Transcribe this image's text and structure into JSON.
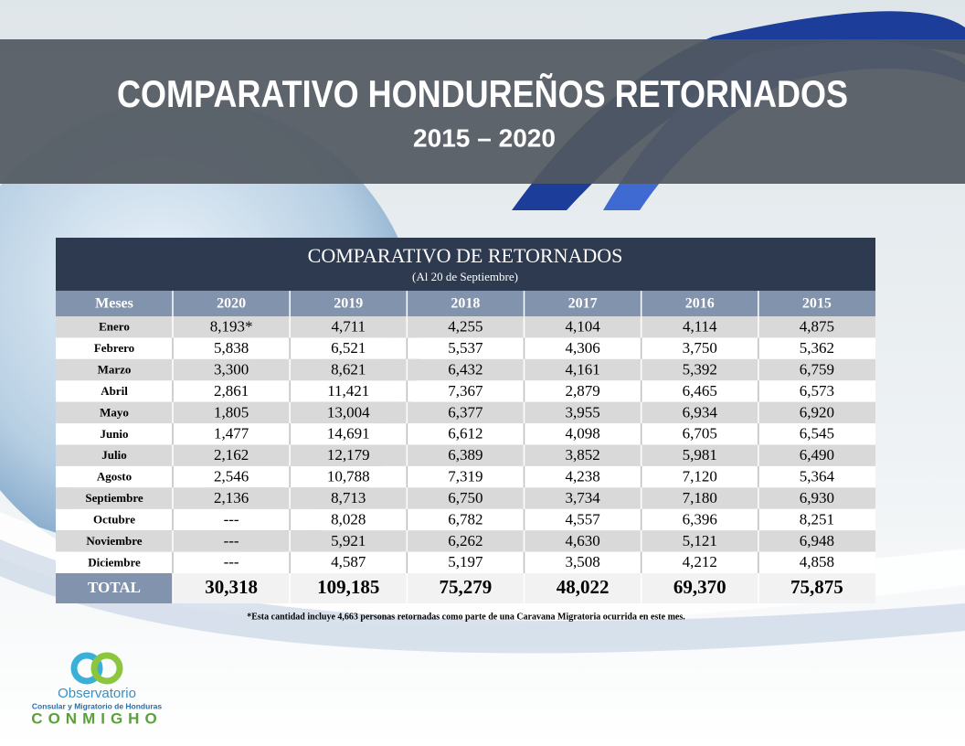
{
  "header": {
    "title": "COMPARATIVO HONDUREÑOS RETORNADOS",
    "subtitle": "2015 – 2020"
  },
  "table": {
    "title": "COMPARATIVO DE RETORNADOS",
    "subtitle": "(Al 20 de Septiembre)",
    "columns": [
      "Meses",
      "2020",
      "2019",
      "2018",
      "2017",
      "2016",
      "2015"
    ],
    "rows": [
      [
        "Enero",
        "8,193*",
        "4,711",
        "4,255",
        "4,104",
        "4,114",
        "4,875"
      ],
      [
        "Febrero",
        "5,838",
        "6,521",
        "5,537",
        "4,306",
        "3,750",
        "5,362"
      ],
      [
        "Marzo",
        "3,300",
        "8,621",
        "6,432",
        "4,161",
        "5,392",
        "6,759"
      ],
      [
        "Abril",
        "2,861",
        "11,421",
        "7,367",
        "2,879",
        "6,465",
        "6,573"
      ],
      [
        "Mayo",
        "1,805",
        "13,004",
        "6,377",
        "3,955",
        "6,934",
        "6,920"
      ],
      [
        "Junio",
        "1,477",
        "14,691",
        "6,612",
        "4,098",
        "6,705",
        "6,545"
      ],
      [
        "Julio",
        "2,162",
        "12,179",
        "6,389",
        "3,852",
        "5,981",
        "6,490"
      ],
      [
        "Agosto",
        "2,546",
        "10,788",
        "7,319",
        "4,238",
        "7,120",
        "5,364"
      ],
      [
        "Septiembre",
        "2,136",
        "8,713",
        "6,750",
        "3,734",
        "7,180",
        "6,930"
      ],
      [
        "Octubre",
        "---",
        "8,028",
        "6,782",
        "4,557",
        "6,396",
        "8,251"
      ],
      [
        "Noviembre",
        "---",
        "5,921",
        "6,262",
        "4,630",
        "5,121",
        "6,948"
      ],
      [
        "Diciembre",
        "---",
        "4,587",
        "5,197",
        "3,508",
        "4,212",
        "4,858"
      ]
    ],
    "total": [
      "TOTAL",
      "30,318",
      "109,185",
      "75,279",
      "48,022",
      "69,370",
      "75,875"
    ]
  },
  "footnote": "*Esta cantidad incluye 4,663 personas retornadas como parte de una Caravana Migratoria ocurrida en este mes.",
  "logo": {
    "name": "Observatorio",
    "subtitle": "Consular y Migratorio de Honduras",
    "brand": "CONMIGHO"
  }
}
